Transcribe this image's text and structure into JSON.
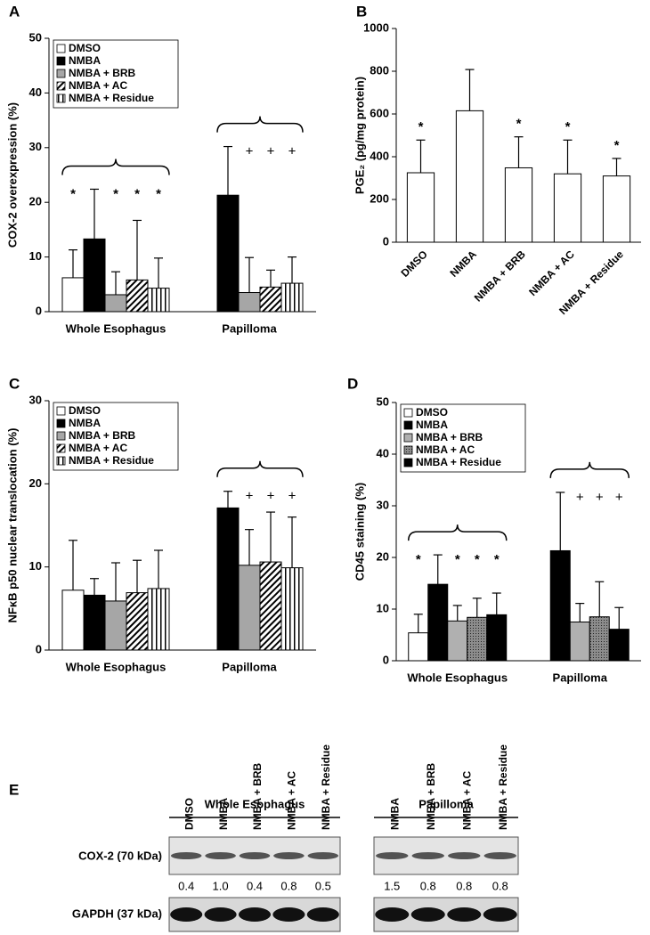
{
  "chart_data": [
    {
      "type": "bar",
      "panel_label": "A",
      "y_label": "COX-2 overexpression (%)",
      "categories": [
        "Whole Esophagus",
        "Papilloma"
      ],
      "ylim": [
        0,
        50
      ],
      "yticks": [
        0,
        10,
        20,
        30,
        40,
        50
      ],
      "legend": "upper left",
      "series": [
        {
          "name": "DMSO",
          "color": "#ffffff",
          "values": [
            6.2,
            null
          ],
          "errors": [
            5.1,
            null
          ],
          "annotations": [
            "*",
            null
          ]
        },
        {
          "name": "NMBA",
          "color": "#000000",
          "values": [
            13.3,
            21.3
          ],
          "errors": [
            9.1,
            8.9
          ],
          "annotations": [
            null,
            null
          ]
        },
        {
          "name": "NMBA + BRB",
          "color": "#a6a6a6",
          "values": [
            3.1,
            3.5
          ],
          "errors": [
            4.2,
            6.4
          ],
          "annotations": [
            "*",
            "+"
          ]
        },
        {
          "name": "NMBA + AC",
          "color": "#ffffff",
          "pattern": "diagonal",
          "values": [
            5.8,
            4.5
          ],
          "errors": [
            10.9,
            3.1
          ],
          "annotations": [
            "*",
            "+"
          ]
        },
        {
          "name": "NMBA + Residue",
          "color": "#ffffff",
          "pattern": "vertical",
          "values": [
            4.3,
            5.2
          ],
          "errors": [
            5.5,
            4.8
          ],
          "annotations": [
            "*",
            "+"
          ]
        }
      ]
    },
    {
      "type": "bar",
      "panel_label": "B",
      "y_label": "PGE₂ (pg/mg protein)",
      "categories": [
        "DMSO",
        "NMBA",
        "NMBA + BRB",
        "NMBA + AC",
        "NMBA + Residue"
      ],
      "values": [
        325,
        615,
        348,
        320,
        310
      ],
      "errors": [
        153,
        193,
        145,
        158,
        82
      ],
      "annotations": [
        "*",
        null,
        "*",
        "*",
        "*"
      ],
      "color": "#ffffff",
      "ylim": [
        0,
        1000
      ],
      "yticks": [
        0,
        200,
        400,
        600,
        800,
        1000
      ]
    },
    {
      "type": "bar",
      "panel_label": "C",
      "y_label": "NFκB p50 nuclear translocation (%)",
      "categories": [
        "Whole Esophagus",
        "Papilloma"
      ],
      "ylim": [
        0,
        30
      ],
      "yticks": [
        0,
        10,
        20,
        30
      ],
      "legend": "upper left",
      "series": [
        {
          "name": "DMSO",
          "color": "#ffffff",
          "values": [
            7.2,
            null
          ],
          "errors": [
            6.0,
            null
          ],
          "annotations": [
            null,
            null
          ]
        },
        {
          "name": "NMBA",
          "color": "#000000",
          "values": [
            6.6,
            17.1
          ],
          "errors": [
            2.0,
            2.0
          ],
          "annotations": [
            null,
            null
          ]
        },
        {
          "name": "NMBA + BRB",
          "color": "#a6a6a6",
          "values": [
            5.9,
            10.2
          ],
          "errors": [
            4.6,
            4.3
          ],
          "annotations": [
            null,
            "+"
          ]
        },
        {
          "name": "NMBA + AC",
          "color": "#ffffff",
          "pattern": "diagonal",
          "values": [
            6.9,
            10.6
          ],
          "errors": [
            3.9,
            6.0
          ],
          "annotations": [
            null,
            "+"
          ]
        },
        {
          "name": "NMBA + Residue",
          "color": "#ffffff",
          "pattern": "vertical",
          "values": [
            7.4,
            9.9
          ],
          "errors": [
            4.6,
            6.1
          ],
          "annotations": [
            null,
            "+"
          ]
        }
      ]
    },
    {
      "type": "bar",
      "panel_label": "D",
      "y_label": "CD45 staining (%)",
      "categories": [
        "Whole Esophagus",
        "Papilloma"
      ],
      "ylim": [
        0,
        50
      ],
      "yticks": [
        0,
        10,
        20,
        30,
        40,
        50
      ],
      "legend": "upper left",
      "series": [
        {
          "name": "DMSO",
          "color": "#ffffff",
          "values": [
            5.4,
            null
          ],
          "errors": [
            3.6,
            null
          ],
          "annotations": [
            "*",
            null
          ]
        },
        {
          "name": "NMBA",
          "color": "#000000",
          "values": [
            14.8,
            21.3
          ],
          "errors": [
            5.7,
            11.3
          ],
          "annotations": [
            null,
            null
          ]
        },
        {
          "name": "NMBA + BRB",
          "color": "#b0b0b0",
          "values": [
            7.7,
            7.5
          ],
          "errors": [
            3.0,
            3.6
          ],
          "annotations": [
            "*",
            "+"
          ]
        },
        {
          "name": "NMBA + AC",
          "color": "#8c8c8c",
          "pattern": "dots",
          "values": [
            8.4,
            8.5
          ],
          "errors": [
            3.7,
            6.8
          ],
          "annotations": [
            "*",
            "+"
          ]
        },
        {
          "name": "NMBA + Residue",
          "color": "#000000",
          "values": [
            8.9,
            6.1
          ],
          "errors": [
            4.2,
            4.2
          ],
          "annotations": [
            "*",
            "+"
          ]
        }
      ]
    }
  ],
  "blot": {
    "panel_label": "E",
    "rows": [
      "COX-2 (70 kDa)",
      "GAPDH (37 kDa)"
    ],
    "groups": [
      {
        "title": "Whole Esophagus",
        "lanes": [
          "DMSO",
          "NMBA",
          "NMBA + BRB",
          "NMBA + AC",
          "NMBA + Residue"
        ],
        "cox2_ratios": [
          "0.4",
          "1.0",
          "0.4",
          "0.8",
          "0.5"
        ]
      },
      {
        "title": "Papilloma",
        "lanes": [
          "NMBA",
          "NMBA + BRB",
          "NMBA + AC",
          "NMBA + Residue"
        ],
        "cox2_ratios": [
          "1.5",
          "0.8",
          "0.8",
          "0.8"
        ]
      }
    ]
  }
}
